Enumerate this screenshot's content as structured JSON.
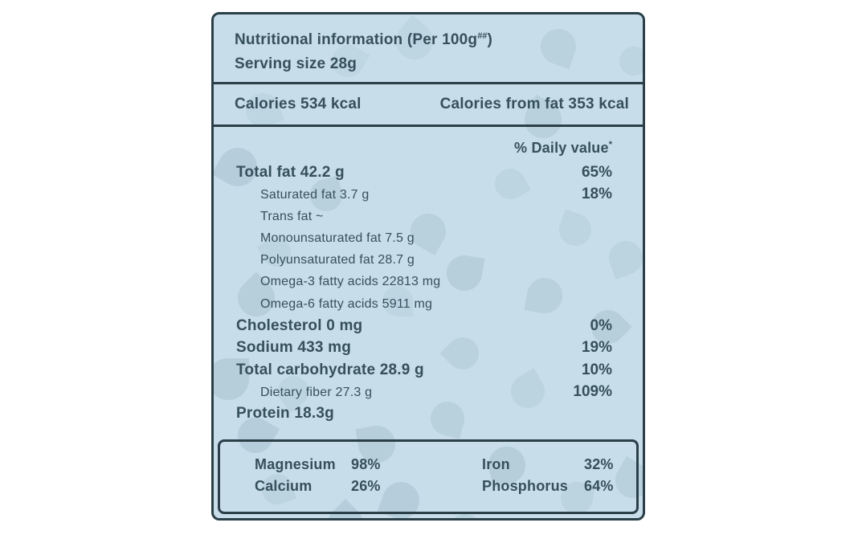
{
  "label": {
    "header": {
      "title_main": "Nutritional information (Per 100g",
      "title_sup": "##",
      "title_close": ")",
      "serving": "Serving size 28g"
    },
    "calories": {
      "left": "Calories 534 kcal",
      "right": "Calories from fat 353 kcal"
    },
    "daily_value_header": {
      "text": "% Daily value",
      "sup": "*"
    },
    "rows": [
      {
        "label": "Total fat 42.2 g",
        "value": "65%",
        "indent": false
      },
      {
        "label": "Saturated fat 3.7 g",
        "value": "18%",
        "indent": true
      },
      {
        "label": "Trans fat ~",
        "value": "",
        "indent": true
      },
      {
        "label": "Monounsaturated fat 7.5 g",
        "value": "",
        "indent": true
      },
      {
        "label": "Polyunsaturated fat 28.7 g",
        "value": "",
        "indent": true
      },
      {
        "label": "Omega-3 fatty acids 22813 mg",
        "value": "",
        "indent": true
      },
      {
        "label": "Omega-6 fatty acids 5911 mg",
        "value": "",
        "indent": true
      },
      {
        "label": "Cholesterol 0 mg",
        "value": "0%",
        "indent": false
      },
      {
        "label": "Sodium 433 mg",
        "value": "19%",
        "indent": false
      },
      {
        "label": "Total carbohydrate 28.9 g",
        "value": "10%",
        "indent": false
      },
      {
        "label": "Dietary fiber 27.3 g",
        "value": "109%",
        "indent": true
      },
      {
        "label": "Protein 18.3g",
        "value": "",
        "indent": false
      }
    ],
    "minerals": {
      "left": [
        {
          "label": "Magnesium",
          "value": "98%"
        },
        {
          "label": "Calcium",
          "value": "26%"
        }
      ],
      "right": [
        {
          "label": "Iron",
          "value": "32%"
        },
        {
          "label": "Phosphorus",
          "value": "64%"
        }
      ]
    },
    "colors": {
      "panel_bg": "#c7dde9",
      "stroke": "#2b3f48",
      "text": "#36505b",
      "pattern_drop": "#9db9c6",
      "page_bg": "#ffffff"
    }
  }
}
